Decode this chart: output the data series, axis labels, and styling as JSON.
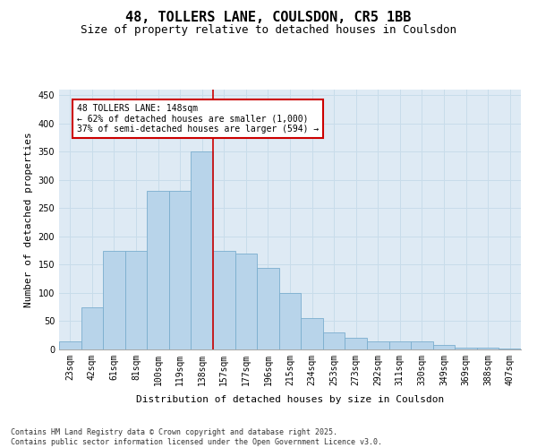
{
  "title": "48, TOLLERS LANE, COULSDON, CR5 1BB",
  "subtitle": "Size of property relative to detached houses in Coulsdon",
  "xlabel": "Distribution of detached houses by size in Coulsdon",
  "ylabel": "Number of detached properties",
  "footer1": "Contains HM Land Registry data © Crown copyright and database right 2025.",
  "footer2": "Contains public sector information licensed under the Open Government Licence v3.0.",
  "annotation_line1": "48 TOLLERS LANE: 148sqm",
  "annotation_line2": "← 62% of detached houses are smaller (1,000)",
  "annotation_line3": "37% of semi-detached houses are larger (594) →",
  "bar_categories": [
    "23sqm",
    "42sqm",
    "61sqm",
    "81sqm",
    "100sqm",
    "119sqm",
    "138sqm",
    "157sqm",
    "177sqm",
    "196sqm",
    "215sqm",
    "234sqm",
    "253sqm",
    "273sqm",
    "292sqm",
    "311sqm",
    "330sqm",
    "349sqm",
    "369sqm",
    "388sqm",
    "407sqm"
  ],
  "bar_values": [
    15,
    75,
    175,
    175,
    280,
    280,
    350,
    175,
    170,
    145,
    100,
    55,
    30,
    20,
    15,
    15,
    15,
    8,
    3,
    3,
    2
  ],
  "bar_color": "#b8d4ea",
  "bar_edge_color": "#7aaece",
  "vline_color": "#cc0000",
  "grid_color": "#c8dcea",
  "bg_color": "#deeaf4",
  "ylim": [
    0,
    460
  ],
  "yticks": [
    0,
    50,
    100,
    150,
    200,
    250,
    300,
    350,
    400,
    450
  ],
  "annotation_box_color": "#cc0000",
  "title_fontsize": 11,
  "subtitle_fontsize": 9,
  "axis_label_fontsize": 8,
  "tick_fontsize": 7
}
